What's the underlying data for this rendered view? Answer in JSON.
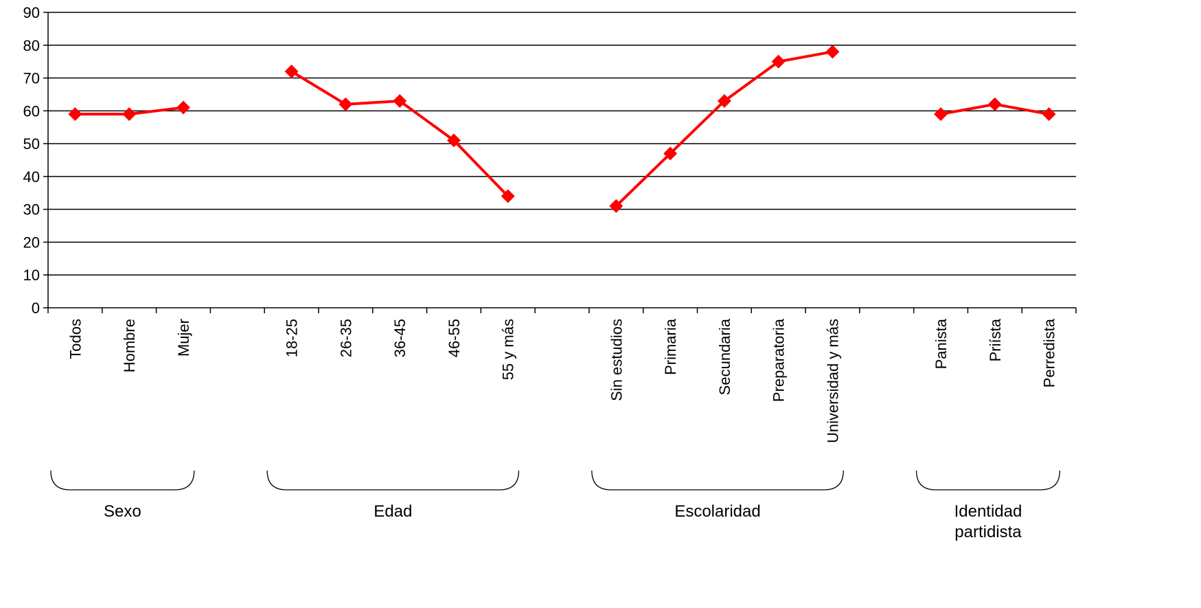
{
  "chart_data": {
    "type": "line",
    "title": "",
    "xlabel": "",
    "ylabel": "",
    "ylim": [
      0,
      90
    ],
    "yticks": [
      0,
      10,
      20,
      30,
      40,
      50,
      60,
      70,
      80,
      90
    ],
    "grid": true,
    "categories": [
      "Todos",
      "Hombre",
      "Mujer",
      "",
      "18-25",
      "26-35",
      "36-45",
      "46-55",
      "55 y más",
      "",
      "Sin estudios",
      "Primaria",
      "Secundaria",
      "Preparatoria",
      "Universidad y más",
      "",
      "Panista",
      "Priísta",
      "Perredista"
    ],
    "series": [
      {
        "color": "#ff0000",
        "segments": [
          {
            "indices": [
              0,
              1,
              2
            ],
            "values": [
              59,
              59,
              61
            ]
          },
          {
            "indices": [
              4,
              5,
              6,
              7,
              8
            ],
            "values": [
              72,
              62,
              63,
              51,
              34
            ]
          },
          {
            "indices": [
              10,
              11,
              12,
              13,
              14
            ],
            "values": [
              31,
              47,
              63,
              75,
              78
            ]
          },
          {
            "indices": [
              16,
              17,
              18
            ],
            "values": [
              59,
              62,
              59
            ]
          }
        ]
      }
    ],
    "groups": [
      {
        "label": "Sexo",
        "lines": [
          "Sexo"
        ],
        "from": 0,
        "to": 2
      },
      {
        "label": "Edad",
        "lines": [
          "Edad"
        ],
        "from": 4,
        "to": 8
      },
      {
        "label": "Escolaridad",
        "lines": [
          "Escolaridad"
        ],
        "from": 10,
        "to": 14
      },
      {
        "label": "Identidad partidista",
        "lines": [
          "Identidad",
          "partidista"
        ],
        "from": 16,
        "to": 18
      }
    ]
  }
}
